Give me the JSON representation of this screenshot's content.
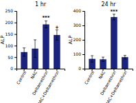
{
  "chart_data": [
    {
      "type": "bar",
      "title": "1 hr",
      "y_label": "ALP",
      "categories": [
        "Control",
        "NAC",
        "Deltamethrin",
        "NAC+Deltamethrin"
      ],
      "values": [
        72,
        87,
        192,
        146
      ],
      "errors": [
        18,
        38,
        15,
        22
      ],
      "color": "#1a237e",
      "ylim": [
        0,
        250
      ],
      "yticks": [
        0,
        50,
        100,
        150,
        200,
        250
      ],
      "grid": false,
      "annotations": [
        {
          "x": "Deltamethrin",
          "text": "***"
        },
        {
          "x": "NAC+Deltamethrin",
          "text": "+"
        }
      ]
    },
    {
      "type": "bar",
      "title": "24 hr",
      "y_label": "ALP",
      "categories": [
        "Control",
        "NAC",
        "Deltamethrin",
        "NAC+Deltamethrin"
      ],
      "values": [
        68,
        65,
        358,
        80
      ],
      "errors": [
        22,
        15,
        20,
        12
      ],
      "color": "#1a237e",
      "ylim": [
        0,
        400
      ],
      "yticks": [
        0,
        100,
        200,
        300,
        400
      ],
      "grid": false,
      "annotations": [
        {
          "x": "Deltamethrin",
          "text": "***"
        }
      ]
    }
  ]
}
